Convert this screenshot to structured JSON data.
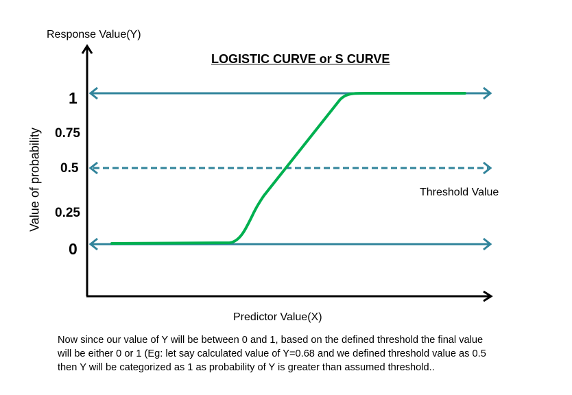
{
  "title": "LOGISTIC CURVE or S CURVE",
  "y_axis_top_label": "Response  Value(Y)",
  "y_axis_side_label": "Value of probability",
  "x_axis_label": "Predictor  Value(X)",
  "threshold_label": "Threshold  Value",
  "y_ticks": [
    "1",
    "0.75",
    "0.5",
    "0.25",
    "0"
  ],
  "note_lines": [
    "Now since our value of Y will be between 0 and 1,  based on the defined threshold the final value",
    "will be  either 0 or 1 (Eg: let say calculated value of Y=0.68 and we defined threshold value as 0.5",
    "then Y will be categorized as 1 as probability of Y is greater than assumed threshold.."
  ],
  "colors": {
    "axis": "#000000",
    "reference_lines": "#31849B",
    "curve": "#00B050"
  },
  "reference_values": [
    1,
    0.5,
    0
  ],
  "threshold_value": 0.5
}
